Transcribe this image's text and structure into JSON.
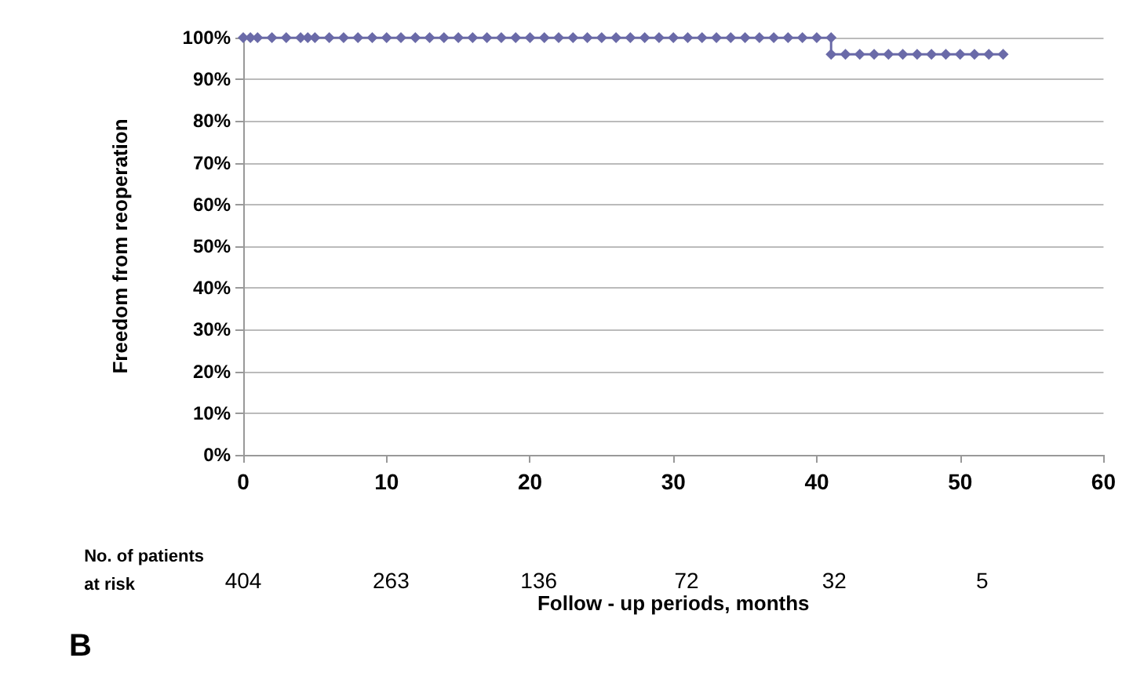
{
  "chart_data": {
    "type": "step",
    "ylabel": "Freedom from reoperation",
    "xlabel": "Follow - up periods, months",
    "series": [
      {
        "color": "#6a6aa8",
        "x": [
          0,
          0.5,
          1,
          2,
          3,
          4,
          4.5,
          5,
          6,
          7,
          8,
          9,
          10,
          11,
          12,
          13,
          14,
          15,
          16,
          17,
          18,
          19,
          20,
          21,
          22,
          23,
          24,
          25,
          26,
          27,
          28,
          29,
          30,
          31,
          32,
          33,
          34,
          35,
          36,
          37,
          38,
          39,
          40,
          41,
          41,
          42,
          43,
          44,
          45,
          46,
          47,
          48,
          49,
          50,
          51,
          52,
          53
        ],
        "values": [
          100,
          100,
          100,
          100,
          100,
          100,
          100,
          100,
          100,
          100,
          100,
          100,
          100,
          100,
          100,
          100,
          100,
          100,
          100,
          100,
          100,
          100,
          100,
          100,
          100,
          100,
          100,
          100,
          100,
          100,
          100,
          100,
          100,
          100,
          100,
          100,
          100,
          100,
          100,
          100,
          100,
          100,
          100,
          100,
          96,
          96,
          96,
          96,
          96,
          96,
          96,
          96,
          96,
          96,
          96,
          96,
          96
        ]
      }
    ],
    "marker": "diamond",
    "grid": "y",
    "xlim": [
      0,
      60
    ],
    "xticks": [
      0,
      10,
      20,
      30,
      40,
      50,
      60
    ],
    "ylim": [
      0,
      100
    ],
    "yticks": [
      {
        "value": 0,
        "label": "0%"
      },
      {
        "value": 10,
        "label": "10%"
      },
      {
        "value": 20,
        "label": "20%"
      },
      {
        "value": 30,
        "label": "30%"
      },
      {
        "value": 40,
        "label": "40%"
      },
      {
        "value": 50,
        "label": "50%"
      },
      {
        "value": 60,
        "label": "60%"
      },
      {
        "value": 70,
        "label": "70%"
      },
      {
        "value": 80,
        "label": "80%"
      },
      {
        "value": 90,
        "label": "90%"
      },
      {
        "value": 100,
        "label": "100%"
      }
    ],
    "annotations": [
      "No. of patients\nat risk",
      "404",
      "263",
      "136",
      "72",
      "32",
      "5",
      "B"
    ]
  }
}
